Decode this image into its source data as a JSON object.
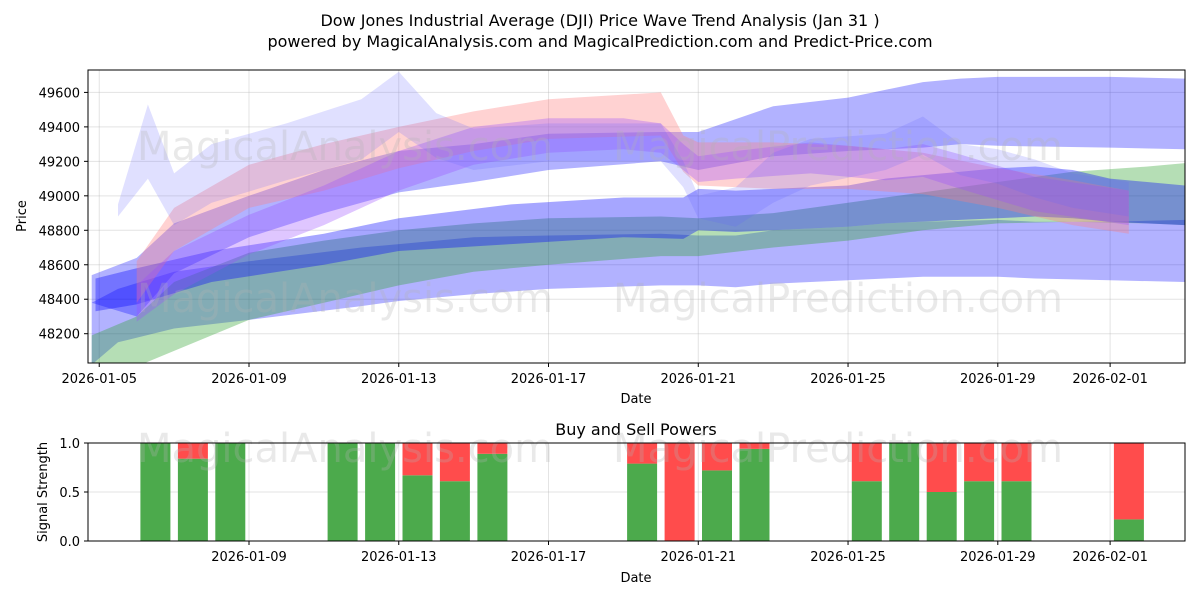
{
  "title_line1": "Dow Jones Industrial Average (DJI) Price Wave Trend Analysis (Jan 31 )",
  "title_line2": "powered by MagicalAnalysis.com and MagicalPrediction.com and Predict-Price.com",
  "watermarks": [
    "MagicalAnalysis.com",
    "MagicalPrediction.com"
  ],
  "chart_data": [
    {
      "type": "area",
      "title": "Dow Jones Industrial Average (DJI) Price Wave Trend Analysis (Jan 31 )",
      "xlabel": "Date",
      "ylabel": "Price",
      "x_range_days": [
        -0.3,
        29.0
      ],
      "ylim": [
        48030,
        49730
      ],
      "x_ticks": [
        {
          "day": 0,
          "label": "2026-01-05"
        },
        {
          "day": 4,
          "label": "2026-01-09"
        },
        {
          "day": 8,
          "label": "2026-01-13"
        },
        {
          "day": 12,
          "label": "2026-01-17"
        },
        {
          "day": 16,
          "label": "2026-01-21"
        },
        {
          "day": 20,
          "label": "2026-01-25"
        },
        {
          "day": 24,
          "label": "2026-01-29"
        },
        {
          "day": 27,
          "label": "2026-02-01"
        }
      ],
      "y_ticks": [
        48200,
        48400,
        48600,
        48800,
        49000,
        49200,
        49400,
        49600
      ],
      "grid": true,
      "bands": [
        {
          "name": "blue wave A",
          "color": "#0000ff",
          "opacity": 0.3,
          "x": [
            -0.2,
            0.5,
            2,
            4,
            7,
            8,
            10,
            12,
            15,
            16,
            17,
            18,
            20,
            21,
            22,
            24,
            25,
            27,
            29
          ],
          "lower": [
            48020,
            48150,
            48230,
            48280,
            48360,
            48390,
            48430,
            48460,
            48480,
            48480,
            48470,
            48490,
            48510,
            48520,
            48530,
            48530,
            48520,
            48510,
            48500
          ],
          "upper": [
            48380,
            48460,
            48560,
            48620,
            48700,
            48720,
            48760,
            48770,
            48780,
            48770,
            48770,
            48800,
            48820,
            48840,
            48850,
            48860,
            48850,
            48850,
            48860
          ]
        },
        {
          "name": "green wave",
          "color": "#2ca02c",
          "opacity": 0.35,
          "x": [
            -0.2,
            1,
            2,
            4,
            6,
            8,
            10,
            12,
            15,
            16,
            18,
            20,
            22,
            24,
            26,
            28,
            29
          ],
          "lower": [
            48010,
            48010,
            48100,
            48280,
            48380,
            48480,
            48560,
            48600,
            48650,
            48650,
            48700,
            48740,
            48800,
            48840,
            48850,
            48840,
            48830
          ],
          "upper": [
            48190,
            48300,
            48500,
            48670,
            48740,
            48800,
            48840,
            48870,
            48880,
            48870,
            48900,
            48960,
            49020,
            49080,
            49140,
            49170,
            49190
          ]
        },
        {
          "name": "blue wave B",
          "color": "#0000ff",
          "opacity": 0.35,
          "x": [
            -0.1,
            1,
            3,
            6,
            8,
            11,
            14,
            15.6,
            16,
            17,
            20,
            21,
            23,
            24,
            25,
            26,
            27,
            29
          ],
          "lower": [
            48330,
            48370,
            48500,
            48600,
            48680,
            48720,
            48760,
            48750,
            48800,
            48790,
            48820,
            48840,
            48860,
            48870,
            48880,
            48870,
            48850,
            48830
          ],
          "upper": [
            48520,
            48580,
            48680,
            48780,
            48870,
            48950,
            48990,
            48990,
            49040,
            49030,
            49060,
            49100,
            49140,
            49160,
            49170,
            49150,
            49100,
            49060
          ]
        },
        {
          "name": "blue wave C",
          "color": "#0000ff",
          "opacity": 0.3,
          "x": [
            -0.2,
            1,
            2,
            4,
            6,
            8,
            10,
            12,
            15,
            16,
            18,
            20,
            22,
            23,
            24,
            27,
            29
          ],
          "lower": [
            48380,
            48300,
            48550,
            48760,
            48900,
            49020,
            49080,
            49150,
            49200,
            49150,
            49230,
            49260,
            49280,
            49300,
            49290,
            49280,
            49270
          ],
          "upper": [
            48540,
            48640,
            48840,
            49000,
            49150,
            49260,
            49300,
            49360,
            49370,
            49370,
            49520,
            49570,
            49660,
            49680,
            49690,
            49690,
            49680
          ]
        },
        {
          "name": "pink wave",
          "color": "#ff7f7f",
          "opacity": 0.35,
          "x": [
            1,
            2,
            4,
            6,
            8,
            10,
            12,
            15,
            15.6,
            16,
            18,
            20,
            22,
            24,
            26,
            27.5
          ],
          "lower": [
            48380,
            48680,
            48930,
            49030,
            49160,
            49260,
            49330,
            49350,
            49140,
            49060,
            49040,
            49040,
            49010,
            48930,
            48830,
            48780
          ],
          "upper": [
            48620,
            48930,
            49180,
            49300,
            49400,
            49490,
            49560,
            49600,
            49350,
            49310,
            49310,
            49290,
            49250,
            49160,
            49090,
            49030
          ]
        },
        {
          "name": "purple wave",
          "color": "#9a4dff",
          "opacity": 0.32,
          "x": [
            1,
            2,
            4,
            6,
            8,
            10,
            12,
            14,
            15,
            15.6,
            16,
            17,
            19,
            21,
            22,
            23,
            25,
            27.5
          ],
          "lower": [
            48270,
            48430,
            48660,
            48830,
            49030,
            49180,
            49250,
            49270,
            49250,
            49150,
            49080,
            49100,
            49130,
            49090,
            49110,
            49040,
            48910,
            48830
          ],
          "upper": [
            48480,
            48680,
            48890,
            49060,
            49260,
            49400,
            49450,
            49450,
            49420,
            49300,
            49230,
            49260,
            49310,
            49270,
            49300,
            49240,
            49110,
            49030
          ]
        },
        {
          "name": "light blue wave",
          "color": "#6464ff",
          "opacity": 0.2,
          "x": [
            0.5,
            1.3,
            2,
            3,
            5,
            7,
            8,
            9,
            10,
            12,
            15,
            15.6,
            16,
            17,
            18,
            19,
            21,
            22,
            23,
            24,
            25,
            26,
            27.5
          ],
          "lower": [
            48880,
            49100,
            48830,
            48960,
            49090,
            49210,
            49370,
            49220,
            49150,
            49200,
            49200,
            49050,
            48870,
            48820,
            48960,
            49060,
            49150,
            49240,
            49120,
            49070,
            48990,
            48930,
            48880
          ],
          "upper": [
            48950,
            49530,
            49130,
            49300,
            49420,
            49560,
            49720,
            49480,
            49390,
            49420,
            49420,
            49200,
            49000,
            49050,
            49250,
            49330,
            49360,
            49460,
            49300,
            49270,
            49210,
            49130,
            49080
          ]
        }
      ]
    },
    {
      "type": "bar",
      "title": "Buy and Sell Powers",
      "xlabel": "Date",
      "ylabel": "Signal Strength",
      "x_range_days": [
        -0.3,
        29.0
      ],
      "ylim": [
        0,
        1
      ],
      "y_ticks": [
        "0.0",
        "0.5",
        "1.0"
      ],
      "x_ticks": [
        {
          "day": 4,
          "label": "2026-01-09"
        },
        {
          "day": 8,
          "label": "2026-01-13"
        },
        {
          "day": 12,
          "label": "2026-01-17"
        },
        {
          "day": 16,
          "label": "2026-01-21"
        },
        {
          "day": 20,
          "label": "2026-01-25"
        },
        {
          "day": 24,
          "label": "2026-01-29"
        },
        {
          "day": 27,
          "label": "2026-02-01"
        }
      ],
      "days": [
        1.5,
        2.5,
        3.5,
        6.5,
        7.5,
        8.5,
        9.5,
        10.5,
        14.5,
        15.5,
        16.5,
        17.5,
        20.5,
        21.5,
        22.5,
        23.5,
        24.5,
        27.5
      ],
      "buy": [
        1.0,
        0.84,
        1.0,
        1.0,
        1.0,
        0.67,
        0.61,
        0.89,
        0.79,
        0.0,
        0.72,
        0.94,
        0.61,
        1.0,
        0.5,
        0.61,
        0.61,
        0.22
      ],
      "buy_color": "#4caa4c",
      "sell_color": "#ff4c4c"
    }
  ]
}
